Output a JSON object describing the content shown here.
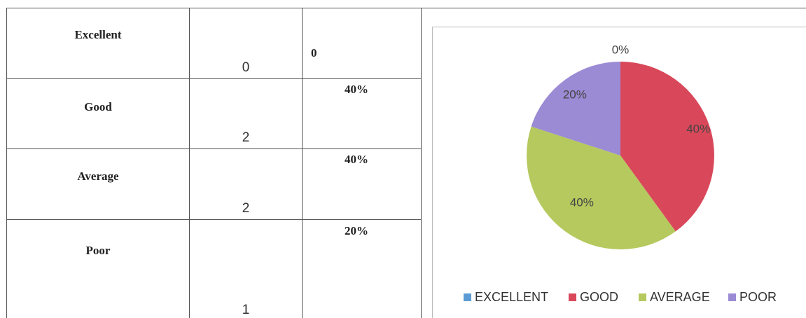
{
  "table": {
    "rows": [
      {
        "label": "Excellent",
        "count": "0",
        "percent": "0"
      },
      {
        "label": "Good",
        "count": "2",
        "percent": "40%"
      },
      {
        "label": "Average",
        "count": "2",
        "percent": "40%"
      },
      {
        "label": "Poor",
        "count": "1",
        "percent": "20%"
      }
    ]
  },
  "chart_data": {
    "type": "pie",
    "categories": [
      "EXCELLENT",
      "GOOD",
      "AVERAGE",
      "POOR"
    ],
    "values": [
      0,
      40,
      40,
      20
    ],
    "data_labels": [
      "0%",
      "40%",
      "40%",
      "20%"
    ],
    "colors": [
      "#5b9bd5",
      "#d9485a",
      "#b5c95e",
      "#9b8ad4"
    ],
    "legend_position": "bottom"
  }
}
